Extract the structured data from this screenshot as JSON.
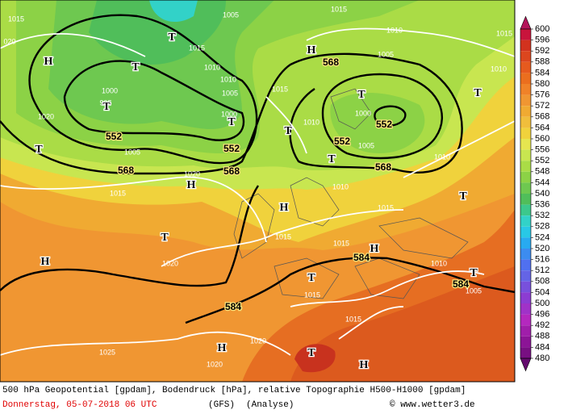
{
  "map": {
    "geopotential_labels": [
      552,
      552,
      552,
      552,
      568,
      568,
      568,
      568,
      584,
      584,
      584
    ],
    "pressure_labels": [
      "020",
      1015,
      1005,
      1015,
      1010,
      1015,
      1010,
      1005,
      1015,
      1010,
      1010,
      1005,
      1015,
      1000,
      995,
      1000,
      1020,
      1000,
      1010,
      1005,
      1005,
      1010,
      1020,
      1015,
      1010,
      1015,
      1015,
      1015,
      1010,
      1020,
      1005,
      1015,
      1015,
      1020,
      1025,
      1020
    ],
    "pressure_systems": [
      "T",
      "H",
      "T",
      "H",
      "T",
      "T",
      "T",
      "T",
      "T",
      "T",
      "T",
      "H",
      "H",
      "T",
      "T",
      "H",
      "H",
      "T",
      "T",
      "H",
      "T",
      "H"
    ],
    "colorbar": {
      "ticks": [
        600,
        596,
        592,
        588,
        584,
        580,
        576,
        572,
        568,
        564,
        560,
        556,
        552,
        548,
        544,
        540,
        536,
        532,
        528,
        524,
        520,
        516,
        512,
        508,
        504,
        500,
        496,
        492,
        488,
        484,
        480
      ],
      "colors": [
        "#b4145a",
        "#c8143c",
        "#d2321e",
        "#dc461e",
        "#e65a1e",
        "#eb6e1e",
        "#f08228",
        "#f09632",
        "#f0aa32",
        "#f0be3c",
        "#f0d23c",
        "#e6e650",
        "#c8e650",
        "#aadc46",
        "#8cd246",
        "#6ec850",
        "#50be5a",
        "#3cc88c",
        "#32d2c8",
        "#28c8e6",
        "#28aaf0",
        "#3c8cf0",
        "#5070f0",
        "#6464e6",
        "#7850dc",
        "#8c3cd2",
        "#a032c8",
        "#b428be",
        "#a01eaa",
        "#8c1496",
        "#780f82",
        "#640a6e"
      ]
    }
  },
  "footer": {
    "description": "500 hPa Geopotential [gpdam], Bodendruck [hPa], relative Topographie H500-H1000 [gpdam]",
    "date": "Donnerstag, 05-07-2018  06 UTC",
    "model": "(GFS)",
    "run": "(Analyse)",
    "credit": "© www.wetter3.de"
  }
}
